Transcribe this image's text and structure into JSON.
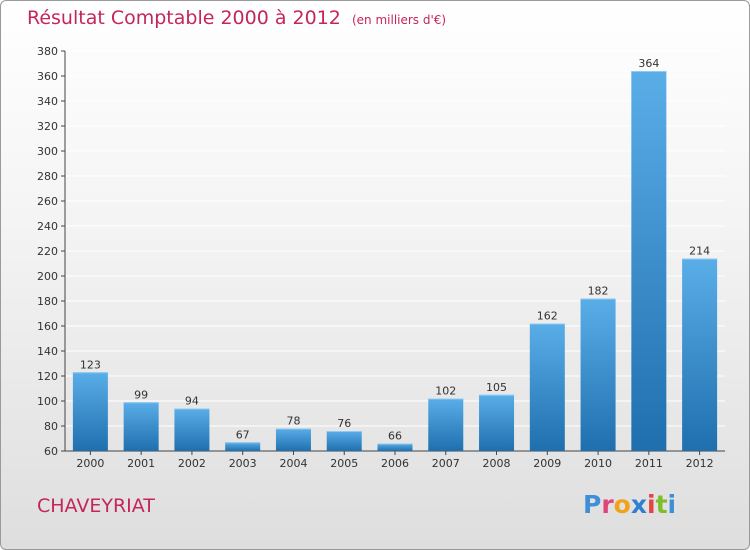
{
  "title": "Résultat Comptable 2000 à 2012",
  "subtitle": "(en milliers d'€)",
  "commune": "CHAVEYRIAT",
  "logo": {
    "letters": [
      {
        "ch": "P",
        "color": "#3d8fd8"
      },
      {
        "ch": "r",
        "color": "#e0457a"
      },
      {
        "ch": "o",
        "color": "#f2a21a"
      },
      {
        "ch": "x",
        "color": "#2f7fd3"
      },
      {
        "ch": "i",
        "color": "#e44343"
      },
      {
        "ch": "t",
        "color": "#7cbf2a"
      },
      {
        "ch": "i",
        "color": "#3d8fd8"
      }
    ]
  },
  "colors": {
    "accent": "#c4265a",
    "bar_light": "#5aaee8",
    "bar_dark": "#1f6fae",
    "axis": "#444444",
    "grid": "#ffffff"
  },
  "chart_data": {
    "type": "bar",
    "title": "Résultat Comptable 2000 à 2012",
    "subtitle": "(en milliers d'€)",
    "categories": [
      "2000",
      "2001",
      "2002",
      "2003",
      "2004",
      "2005",
      "2006",
      "2007",
      "2008",
      "2009",
      "2010",
      "2011",
      "2012"
    ],
    "values": [
      123,
      99,
      94,
      67,
      78,
      76,
      66,
      102,
      105,
      162,
      182,
      364,
      214
    ],
    "data_labels": [
      "123",
      "99",
      "94",
      "67",
      "78",
      "76",
      "66",
      "102",
      "105",
      "162",
      "182",
      "364",
      "214"
    ],
    "ylim": [
      60,
      380
    ],
    "yticks": [
      60,
      80,
      100,
      120,
      140,
      160,
      180,
      200,
      220,
      240,
      260,
      280,
      300,
      320,
      340,
      360,
      380
    ],
    "grid": true,
    "legend": false
  }
}
